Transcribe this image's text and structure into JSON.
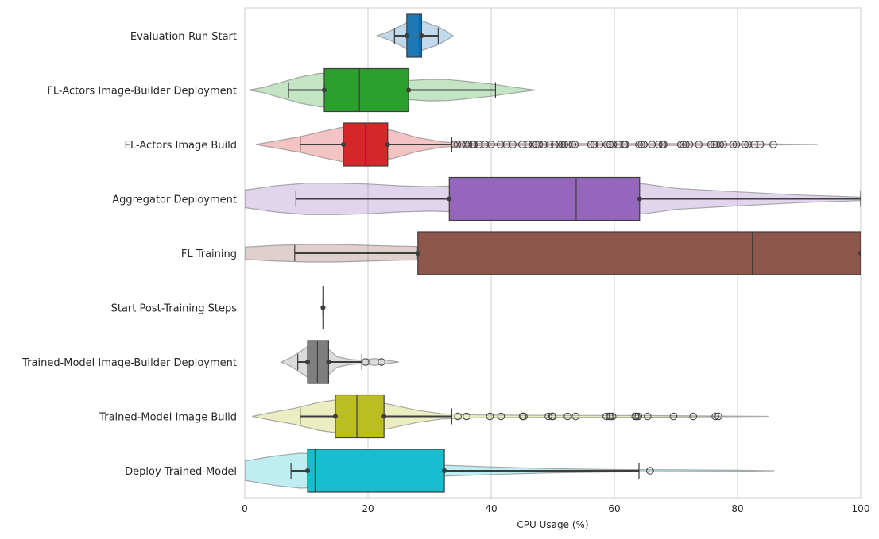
{
  "chart_data": {
    "type": "box-violin",
    "orientation": "horizontal",
    "xlabel": "CPU Usage (%)",
    "xlim": [
      0,
      100
    ],
    "x_ticks": [
      0,
      20,
      40,
      60,
      80,
      100
    ],
    "grid": "vertical",
    "legend": "none",
    "categories": [
      {
        "label": "Evaluation-Run Start",
        "color": "#1f77b4",
        "box": {
          "whislo": 24.3,
          "q1": 26.3,
          "med": 28.4,
          "q3": 28.7,
          "whishi": 31.4
        },
        "violin": {
          "min": 21.5,
          "max": 33.8,
          "profile": [
            [
              21.5,
              0.0
            ],
            [
              23.5,
              0.25
            ],
            [
              25.5,
              0.6
            ],
            [
              27.5,
              1.0
            ],
            [
              29.5,
              0.75
            ],
            [
              31.5,
              0.5
            ],
            [
              33.0,
              0.2
            ],
            [
              33.8,
              0.0
            ]
          ]
        },
        "outliers": []
      },
      {
        "label": "FL-Actors Image-Builder Deployment",
        "color": "#2ca02c",
        "box": {
          "whislo": 7.1,
          "q1": 12.9,
          "med": 18.6,
          "q3": 26.6,
          "whishi": 40.7
        },
        "violin": {
          "min": 0.6,
          "max": 47.2,
          "profile": [
            [
              0.6,
              0.0
            ],
            [
              3.0,
              0.15
            ],
            [
              6.0,
              0.45
            ],
            [
              9.0,
              0.75
            ],
            [
              12.0,
              0.95
            ],
            [
              15.0,
              1.0
            ],
            [
              18.0,
              0.9
            ],
            [
              21.0,
              0.75
            ],
            [
              24.0,
              0.6
            ],
            [
              27.0,
              0.55
            ],
            [
              30.0,
              0.62
            ],
            [
              33.0,
              0.6
            ],
            [
              36.0,
              0.5
            ],
            [
              40.0,
              0.35
            ],
            [
              44.0,
              0.15
            ],
            [
              47.2,
              0.0
            ]
          ]
        },
        "outliers": []
      },
      {
        "label": "FL-Actors Image Build",
        "color": "#d62728",
        "box": {
          "whislo": 9.0,
          "q1": 16.0,
          "med": 19.6,
          "q3": 23.2,
          "whishi": 33.6
        },
        "violin": {
          "min": 1.8,
          "max": 93.0,
          "profile": [
            [
              1.8,
              0.0
            ],
            [
              5.0,
              0.2
            ],
            [
              9.0,
              0.45
            ],
            [
              12.0,
              0.7
            ],
            [
              16.0,
              1.0
            ],
            [
              20.0,
              1.0
            ],
            [
              24.0,
              0.8
            ],
            [
              28.0,
              0.4
            ],
            [
              32.0,
              0.15
            ],
            [
              36.0,
              0.07
            ],
            [
              45.0,
              0.05
            ],
            [
              60.0,
              0.05
            ],
            [
              80.0,
              0.05
            ],
            [
              93.0,
              0.0
            ]
          ]
        },
        "outliers": [
          34.0,
          34.5,
          35.2,
          35.9,
          36.3,
          37.0,
          37.2,
          38.0,
          39.0,
          40.0,
          41.5,
          42.5,
          43.5,
          45.0,
          46.0,
          46.8,
          47.3,
          47.8,
          48.5,
          49.5,
          50.3,
          51.0,
          51.5,
          51.9,
          52.5,
          53.2,
          53.6,
          56.2,
          56.7,
          57.6,
          58.8,
          59.3,
          59.8,
          60.6,
          61.6,
          61.8,
          64.0,
          64.4,
          64.8,
          66.1,
          67.2,
          67.8,
          68.0,
          70.8,
          71.2,
          71.6,
          72.2,
          73.7,
          75.7,
          76.2,
          76.6,
          77.2,
          77.7,
          79.3,
          79.8,
          81.2,
          81.7,
          82.7,
          83.7,
          85.8
        ]
      },
      {
        "label": "Aggregator Deployment",
        "color": "#9467bd",
        "box": {
          "whislo": 8.3,
          "q1": 33.2,
          "med": 53.8,
          "q3": 64.1,
          "whishi": 100.0
        },
        "violin": {
          "min": 0.0,
          "max": 100.0,
          "profile": [
            [
              0.0,
              0.5
            ],
            [
              5.0,
              0.75
            ],
            [
              10.0,
              0.9
            ],
            [
              15.0,
              0.9
            ],
            [
              20.0,
              0.85
            ],
            [
              25.0,
              0.75
            ],
            [
              30.0,
              0.7
            ],
            [
              35.0,
              0.75
            ],
            [
              40.0,
              0.85
            ],
            [
              50.0,
              0.95
            ],
            [
              60.0,
              0.95
            ],
            [
              65.0,
              0.85
            ],
            [
              70.0,
              0.6
            ],
            [
              80.0,
              0.4
            ],
            [
              90.0,
              0.22
            ],
            [
              100.0,
              0.1
            ]
          ]
        },
        "outliers": []
      },
      {
        "label": "FL Training",
        "color": "#8c564b",
        "box": {
          "whislo": 8.1,
          "q1": 28.1,
          "med": 82.4,
          "q3": 100.0,
          "whishi": 100.0
        },
        "violin": {
          "min": 0.0,
          "max": 100.0,
          "profile": [
            [
              0.0,
              0.35
            ],
            [
              5.0,
              0.45
            ],
            [
              10.0,
              0.5
            ],
            [
              15.0,
              0.5
            ],
            [
              20.0,
              0.45
            ],
            [
              25.0,
              0.4
            ],
            [
              28.0,
              0.38
            ]
          ]
        },
        "outliers": []
      },
      {
        "label": "Start Post-Training Steps",
        "color": "#e377c2",
        "box": {
          "whislo": 12.7,
          "q1": 12.7,
          "med": 12.7,
          "q3": 12.7,
          "whishi": 12.7
        },
        "violin": {
          "min": 12.5,
          "max": 12.9,
          "profile": [
            [
              12.5,
              0.0
            ],
            [
              12.6,
              0.1
            ],
            [
              12.8,
              0.1
            ],
            [
              12.9,
              0.0
            ]
          ]
        },
        "outliers": []
      },
      {
        "label": "Trained-Model Image-Builder Deployment",
        "color": "#7f7f7f",
        "box": {
          "whislo": 8.6,
          "q1": 10.2,
          "med": 11.8,
          "q3": 13.6,
          "whishi": 19.0
        },
        "violin": {
          "min": 5.9,
          "max": 25.0,
          "profile": [
            [
              5.9,
              0.0
            ],
            [
              7.5,
              0.25
            ],
            [
              9.0,
              0.6
            ],
            [
              10.5,
              0.95
            ],
            [
              12.0,
              1.0
            ],
            [
              13.5,
              0.75
            ],
            [
              15.0,
              0.3
            ],
            [
              17.0,
              0.15
            ],
            [
              19.0,
              0.1
            ],
            [
              21.0,
              0.2
            ],
            [
              23.0,
              0.1
            ],
            [
              25.0,
              0.0
            ]
          ]
        },
        "outliers": [
          19.6,
          22.2
        ]
      },
      {
        "label": "Trained-Model Image Build",
        "color": "#bcbd22",
        "box": {
          "whislo": 9.0,
          "q1": 14.7,
          "med": 18.2,
          "q3": 22.6,
          "whishi": 33.6
        },
        "violin": {
          "min": 1.2,
          "max": 85.0,
          "profile": [
            [
              1.2,
              0.0
            ],
            [
              4.0,
              0.2
            ],
            [
              8.0,
              0.45
            ],
            [
              12.0,
              0.8
            ],
            [
              16.0,
              1.0
            ],
            [
              20.0,
              0.95
            ],
            [
              24.0,
              0.65
            ],
            [
              28.0,
              0.35
            ],
            [
              32.0,
              0.15
            ],
            [
              38.0,
              0.08
            ],
            [
              50.0,
              0.06
            ],
            [
              65.0,
              0.05
            ],
            [
              85.0,
              0.0
            ]
          ]
        },
        "outliers": [
          34.6,
          36.0,
          39.8,
          41.6,
          45.1,
          45.3,
          49.3,
          49.9,
          50.0,
          52.4,
          53.7,
          58.7,
          59.2,
          59.4,
          59.7,
          63.4,
          63.6,
          63.9,
          65.4,
          69.6,
          72.8,
          76.4,
          76.9
        ]
      },
      {
        "label": "Deploy Trained-Model",
        "color": "#17becf",
        "box": {
          "whislo": 7.5,
          "q1": 10.2,
          "med": 11.4,
          "q3": 32.4,
          "whishi": 64.0
        },
        "violin": {
          "min": 0.0,
          "max": 86.0,
          "profile": [
            [
              0.0,
              0.55
            ],
            [
              5.0,
              0.85
            ],
            [
              9.0,
              1.0
            ],
            [
              13.0,
              0.95
            ],
            [
              18.0,
              0.6
            ],
            [
              25.0,
              0.4
            ],
            [
              32.0,
              0.32
            ],
            [
              40.0,
              0.22
            ],
            [
              50.0,
              0.12
            ],
            [
              60.0,
              0.07
            ],
            [
              70.0,
              0.05
            ],
            [
              80.0,
              0.03
            ],
            [
              86.0,
              0.0
            ]
          ]
        },
        "outliers": [
          65.8
        ]
      }
    ]
  }
}
